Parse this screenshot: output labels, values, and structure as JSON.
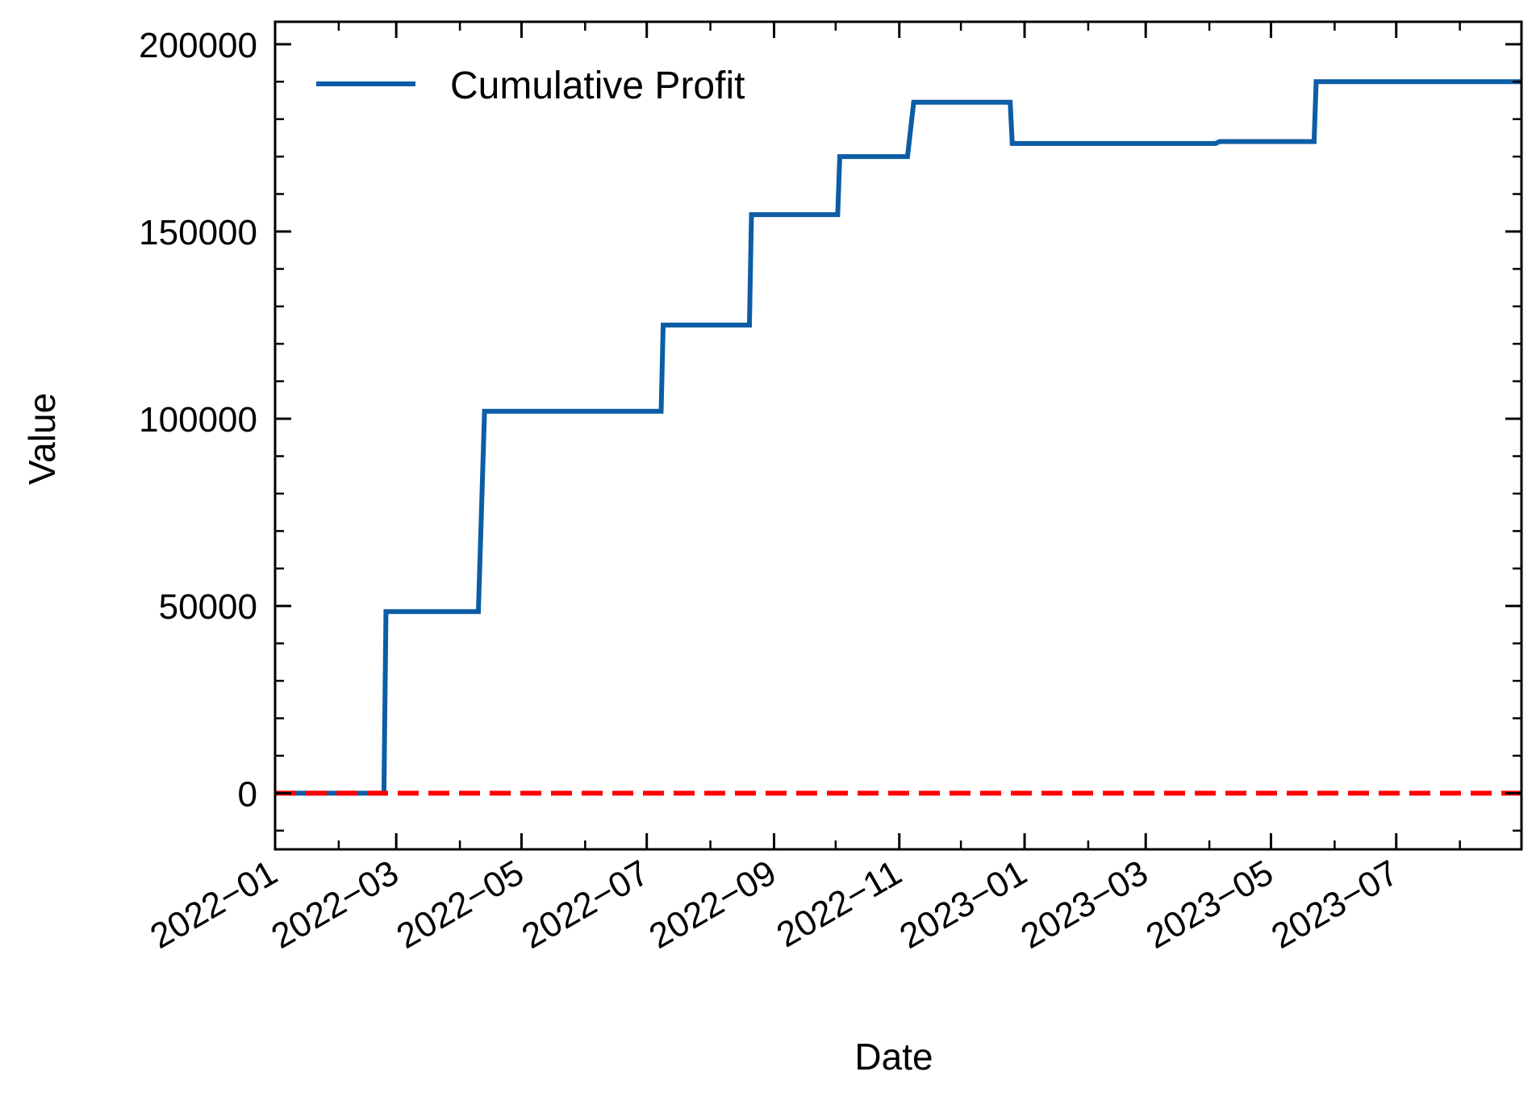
{
  "chart_data": {
    "type": "line",
    "xlabel": "Date",
    "ylabel": "Value",
    "x_ticks": [
      "2022-01-01",
      "2022-03-01",
      "2022-05-01",
      "2022-07-01",
      "2022-09-01",
      "2022-11-01",
      "2023-01-01",
      "2023-03-01",
      "2023-05-01",
      "2023-07-01"
    ],
    "x_tick_labels": [
      "2022−01",
      "2022−03",
      "2022−05",
      "2022−07",
      "2022−09",
      "2022−11",
      "2023−01",
      "2023−03",
      "2023−05",
      "2023−07"
    ],
    "y_ticks": [
      0,
      50000,
      100000,
      150000,
      200000
    ],
    "y_tick_labels": [
      "0",
      "50000",
      "100000",
      "150000",
      "200000"
    ],
    "xlim": [
      "2022-01-01",
      "2023-08-31"
    ],
    "ylim": [
      -15000,
      206000
    ],
    "grid": false,
    "legend_position": "top-left",
    "series": [
      {
        "name": "Cumulative Profit",
        "color": "#0C5DA5",
        "style": "solid",
        "points": [
          [
            "2022-01-01",
            0
          ],
          [
            "2022-02-23",
            0
          ],
          [
            "2022-02-24",
            48500
          ],
          [
            "2022-04-10",
            48500
          ],
          [
            "2022-04-13",
            102000
          ],
          [
            "2022-07-08",
            102000
          ],
          [
            "2022-07-09",
            125000
          ],
          [
            "2022-08-20",
            125000
          ],
          [
            "2022-08-21",
            154500
          ],
          [
            "2022-10-02",
            154500
          ],
          [
            "2022-10-03",
            170000
          ],
          [
            "2022-11-05",
            170000
          ],
          [
            "2022-11-08",
            184500
          ],
          [
            "2022-12-25",
            184500
          ],
          [
            "2022-12-26",
            173500
          ],
          [
            "2023-04-04",
            173500
          ],
          [
            "2023-04-06",
            174000
          ],
          [
            "2023-05-22",
            174000
          ],
          [
            "2023-05-23",
            190000
          ],
          [
            "2023-08-31",
            190000
          ]
        ]
      },
      {
        "name": "",
        "color": "#FF0000",
        "style": "dashed",
        "points": [
          [
            "2022-01-01",
            0
          ],
          [
            "2023-08-31",
            0
          ]
        ]
      }
    ]
  }
}
